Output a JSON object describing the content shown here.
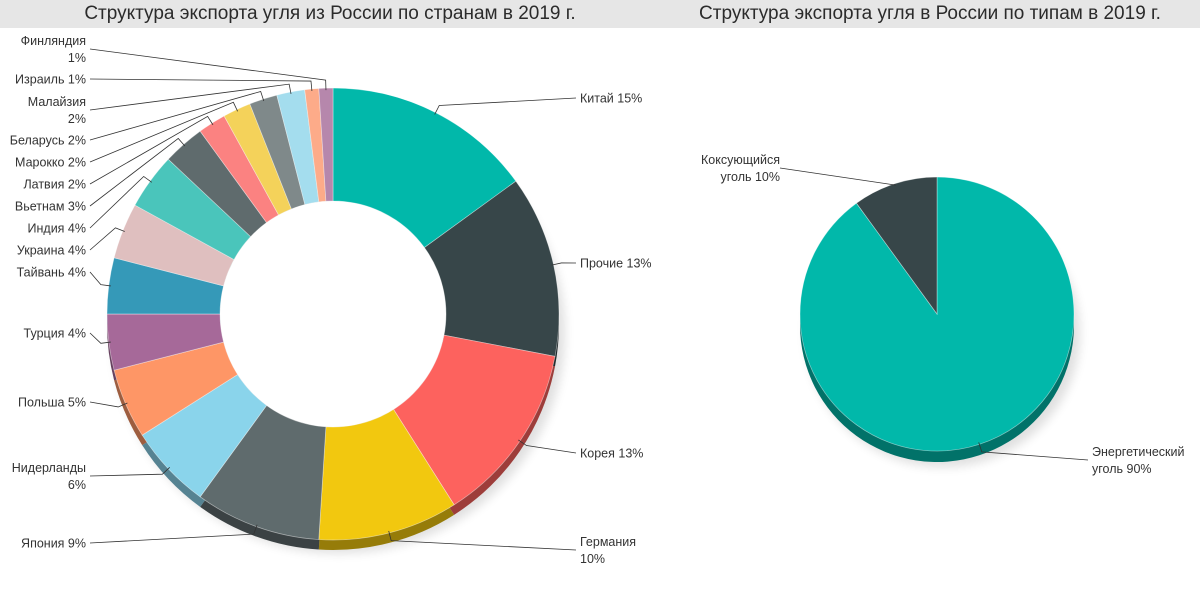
{
  "chart_data": [
    {
      "type": "pie",
      "variant": "donut",
      "title": "Структура экспорта угля из России по странам в 2019 г.",
      "categories": [
        "Китай",
        "Прочие",
        "Корея",
        "Германия",
        "Япония",
        "Нидерланды",
        "Польша",
        "Турция",
        "Тайвань",
        "Украина",
        "Индия",
        "Вьетнам",
        "Латвия",
        "Марокко",
        "Беларусь",
        "Малайзия",
        "Израиль",
        "Финляндия"
      ],
      "values": [
        15,
        13,
        13,
        10,
        9,
        6,
        5,
        4,
        4,
        4,
        4,
        3,
        2,
        2,
        2,
        2,
        1,
        1
      ],
      "labels": [
        [
          "Китай 15%"
        ],
        [
          "Прочие 13%"
        ],
        [
          "Корея 13%"
        ],
        [
          "Германия",
          "10%"
        ],
        [
          "Япония 9%"
        ],
        [
          "Нидерланды",
          "6%"
        ],
        [
          "Польша 5%"
        ],
        [
          "Турция 4%"
        ],
        [
          "Тайвань 4%"
        ],
        [
          "Украина 4%"
        ],
        [
          "Индия 4%"
        ],
        [
          "Вьетнам 3%"
        ],
        [
          "Латвия 2%"
        ],
        [
          "Марокко 2%"
        ],
        [
          "Беларусь 2%"
        ],
        [
          "Малайзия",
          "2%"
        ],
        [
          "Израиль 1%"
        ],
        [
          "Финляндия",
          "1%"
        ]
      ],
      "colors": [
        "#01B8AA",
        "#374649",
        "#FD625E",
        "#F2C80F",
        "#5F6B6D",
        "#8AD4EB",
        "#FE9666",
        "#A66999",
        "#3599B8",
        "#DFBFBF",
        "#4AC5BB",
        "#5F6B6D",
        "#FB8281",
        "#F4D25A",
        "#7F898A",
        "#A4DDEE",
        "#FDAB89",
        "#B687AC"
      ]
    },
    {
      "type": "pie",
      "title": "Структура экспорта угля в России по типам в 2019 г.",
      "categories": [
        "Энергетический уголь",
        "Коксующийся уголь"
      ],
      "values": [
        90,
        10
      ],
      "labels": [
        [
          "Энергетический",
          "уголь 90%"
        ],
        [
          "Коксующийся",
          "уголь 10%"
        ]
      ],
      "colors": [
        "#01B8AA",
        "#374649"
      ]
    }
  ]
}
